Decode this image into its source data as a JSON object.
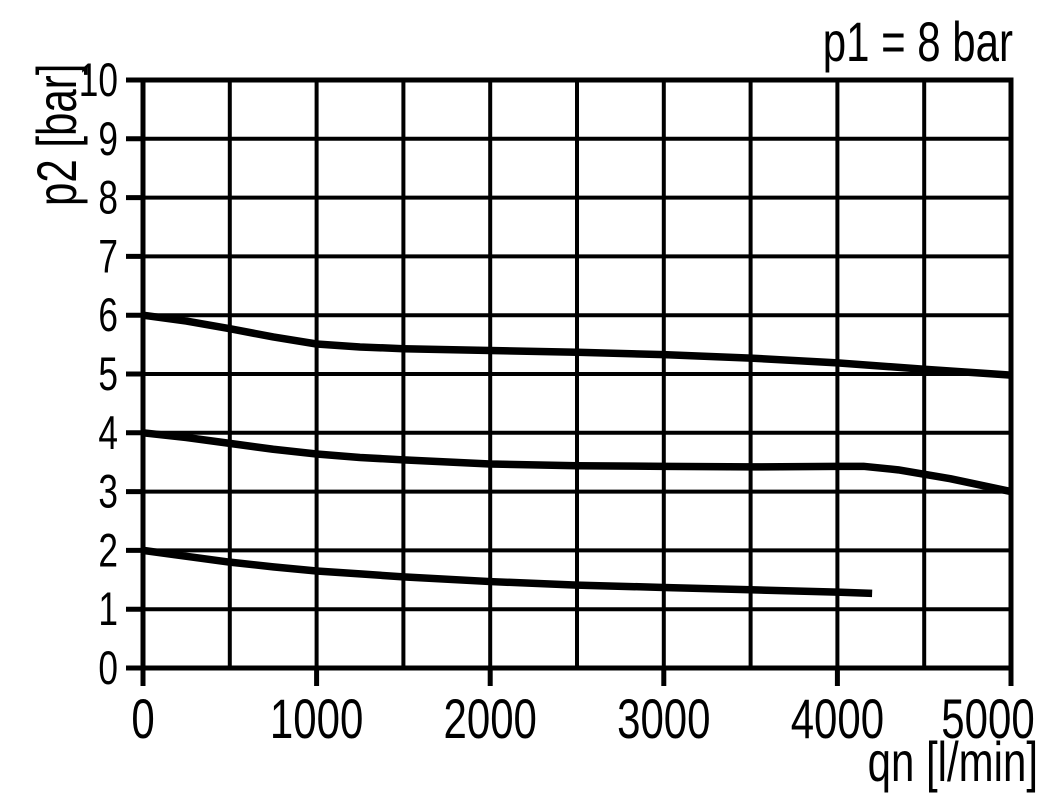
{
  "chart_data": {
    "type": "line",
    "title": "p1 = 8 bar",
    "xlabel": "qn [l/min]",
    "ylabel": "p2 [bar]",
    "xlim": [
      0,
      5000
    ],
    "ylim": [
      0,
      10
    ],
    "x_ticks": [
      0,
      1000,
      2000,
      3000,
      4000,
      5000
    ],
    "y_ticks": [
      0,
      1,
      2,
      3,
      4,
      5,
      6,
      7,
      8,
      9,
      10
    ],
    "x_grid_step": 500,
    "y_grid_step": 1,
    "grid": true,
    "legend": false,
    "colors": {
      "ink": "#000000",
      "background": "#ffffff"
    },
    "series": [
      {
        "name": "setpoint-6-bar",
        "points": [
          [
            0,
            6.0
          ],
          [
            250,
            5.9
          ],
          [
            500,
            5.77
          ],
          [
            750,
            5.63
          ],
          [
            1000,
            5.51
          ],
          [
            1250,
            5.46
          ],
          [
            1500,
            5.43
          ],
          [
            2000,
            5.4
          ],
          [
            2500,
            5.37
          ],
          [
            3000,
            5.33
          ],
          [
            3500,
            5.27
          ],
          [
            4000,
            5.19
          ],
          [
            4500,
            5.08
          ],
          [
            5000,
            4.98
          ]
        ]
      },
      {
        "name": "setpoint-4-bar",
        "points": [
          [
            0,
            4.0
          ],
          [
            250,
            3.92
          ],
          [
            500,
            3.82
          ],
          [
            750,
            3.72
          ],
          [
            1000,
            3.64
          ],
          [
            1250,
            3.58
          ],
          [
            1500,
            3.54
          ],
          [
            2000,
            3.47
          ],
          [
            2500,
            3.44
          ],
          [
            3000,
            3.43
          ],
          [
            3500,
            3.42
          ],
          [
            4000,
            3.43
          ],
          [
            4150,
            3.43
          ],
          [
            4350,
            3.37
          ],
          [
            4650,
            3.22
          ],
          [
            5000,
            3.0
          ]
        ]
      },
      {
        "name": "setpoint-2-bar",
        "points": [
          [
            0,
            2.0
          ],
          [
            250,
            1.9
          ],
          [
            500,
            1.8
          ],
          [
            750,
            1.72
          ],
          [
            1000,
            1.65
          ],
          [
            1250,
            1.6
          ],
          [
            1500,
            1.55
          ],
          [
            2000,
            1.47
          ],
          [
            2500,
            1.41
          ],
          [
            3000,
            1.37
          ],
          [
            3500,
            1.33
          ],
          [
            4000,
            1.29
          ],
          [
            4200,
            1.27
          ]
        ]
      }
    ]
  }
}
